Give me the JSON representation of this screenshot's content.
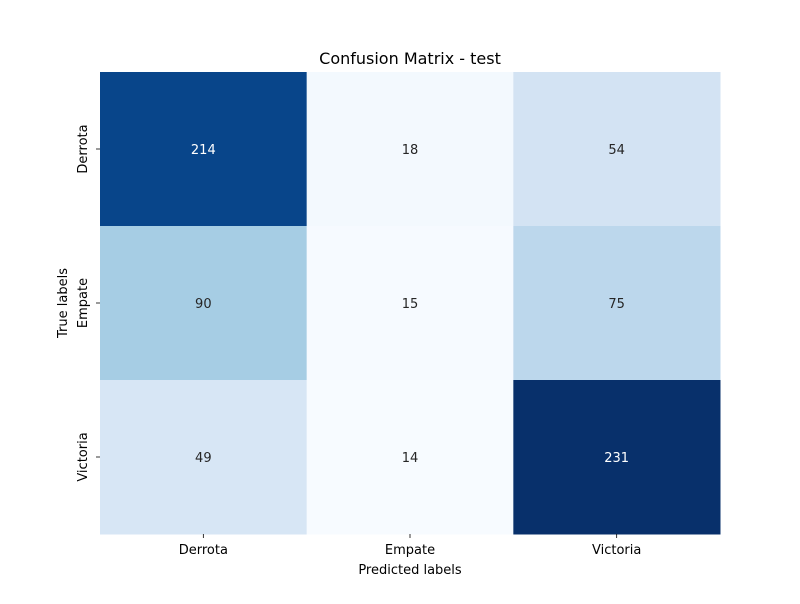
{
  "chart_data": {
    "type": "heatmap",
    "title": "Confusion Matrix - test",
    "xlabel": "Predicted labels",
    "ylabel": "True labels",
    "x_categories": [
      "Derrota",
      "Empate",
      "Victoria"
    ],
    "y_categories": [
      "Derrota",
      "Empate",
      "Victoria"
    ],
    "values": [
      [
        214,
        18,
        54
      ],
      [
        90,
        15,
        75
      ],
      [
        49,
        14,
        231
      ]
    ],
    "colormap": "Blues",
    "color_range": [
      14,
      231
    ],
    "colorbar": false
  }
}
